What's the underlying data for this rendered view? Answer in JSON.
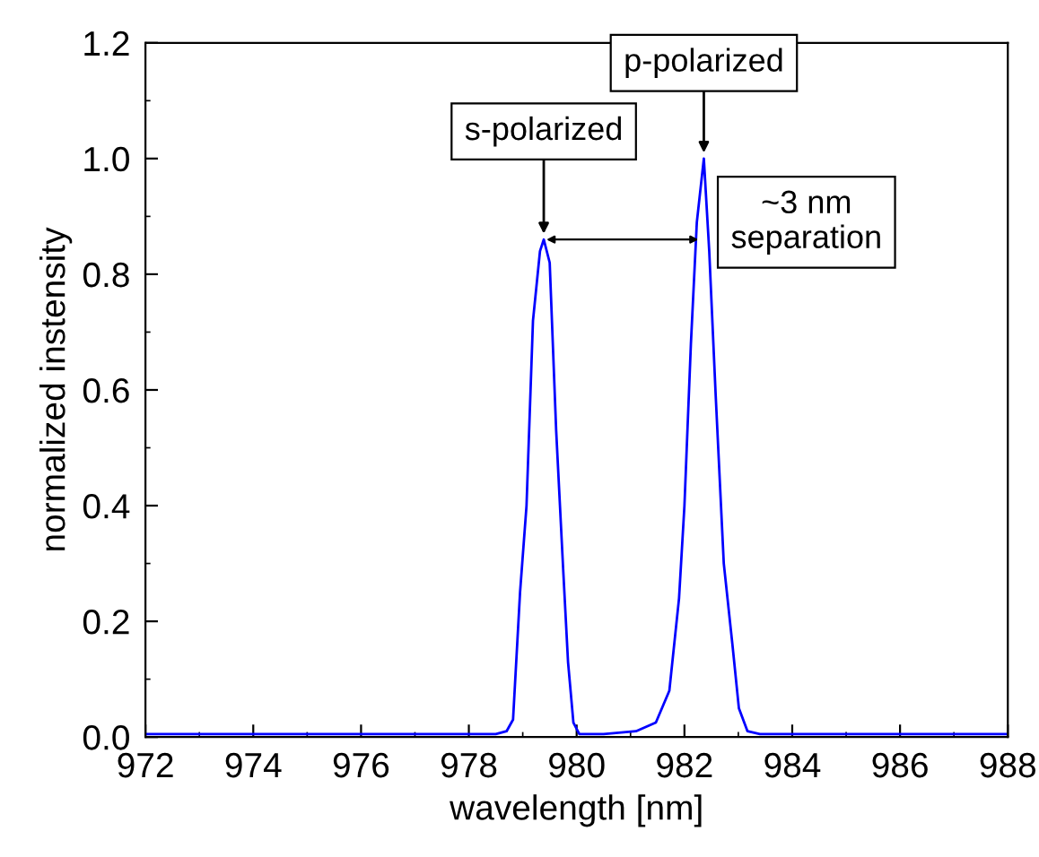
{
  "chart_data": {
    "type": "line",
    "xlabel": "wavelength [nm]",
    "ylabel": "normalized instensity",
    "xlim": [
      972,
      988
    ],
    "ylim": [
      0,
      1.2
    ],
    "xticks": [
      972,
      974,
      976,
      978,
      980,
      982,
      984,
      986,
      988
    ],
    "yticks": [
      {
        "value": 0,
        "label": "0.0"
      },
      {
        "value": 0.2,
        "label": "0.2"
      },
      {
        "value": 0.4,
        "label": "0.4"
      },
      {
        "value": 0.6,
        "label": "0.6"
      },
      {
        "value": 0.8,
        "label": "0.8"
      },
      {
        "value": 1.0,
        "label": "1.0"
      },
      {
        "value": 1.2,
        "label": "1.2"
      }
    ],
    "grid": false,
    "legend": false,
    "marker": "none",
    "line_style": "solid",
    "series": [
      {
        "color": "#0000ff",
        "x": [
          972,
          974,
          976,
          978,
          978.5,
          978.7,
          978.82,
          978.95,
          979.07,
          979.19,
          979.32,
          979.39,
          979.5,
          979.62,
          979.75,
          979.84,
          979.94,
          980.05,
          980.5,
          981.1,
          981.47,
          981.72,
          981.9,
          982.0,
          982.12,
          982.23,
          982.36,
          982.46,
          982.58,
          982.73,
          982.89,
          983.01,
          983.17,
          983.4,
          984,
          986,
          988
        ],
        "values": [
          0.005,
          0.005,
          0.005,
          0.005,
          0.005,
          0.01,
          0.03,
          0.25,
          0.4,
          0.72,
          0.84,
          0.86,
          0.82,
          0.53,
          0.29,
          0.13,
          0.025,
          0.005,
          0.005,
          0.01,
          0.025,
          0.08,
          0.24,
          0.4,
          0.68,
          0.89,
          1.0,
          0.84,
          0.59,
          0.3,
          0.16,
          0.05,
          0.01,
          0.005,
          0.005,
          0.005,
          0.005
        ]
      }
    ],
    "annotations": [
      {
        "text": "s-polarized",
        "x": 979.39,
        "y": 0.86
      },
      {
        "text": "p-polarized",
        "x": 982.36,
        "y": 1.0
      },
      "~3 nm\nseparation"
    ]
  }
}
